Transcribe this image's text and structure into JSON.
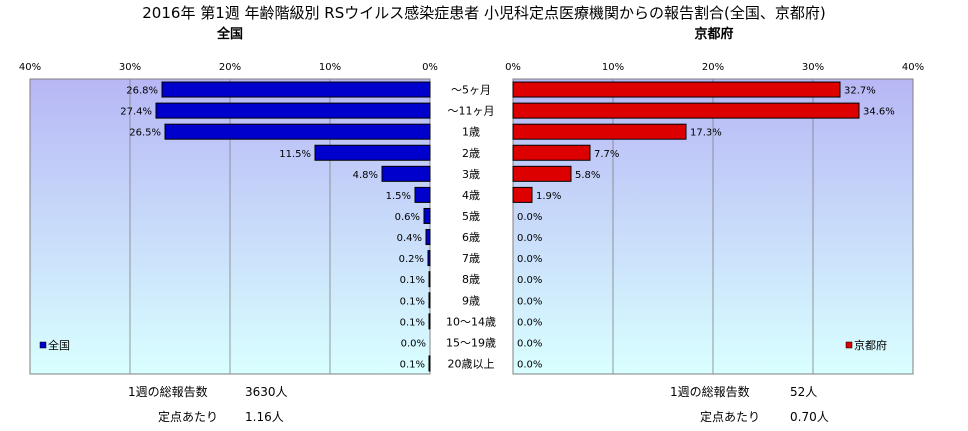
{
  "title": "2016年 第1週 年齢階級別 RSウイルス感染症患者 小児科定点医療機関からの報告割合(全国、京都府)",
  "colors": {
    "national": "#0000cc",
    "kyoto": "#dd0000",
    "plot_bg_top": "#b7b7f5",
    "plot_bg_bottom": "#d9ffff"
  },
  "chart_data": {
    "type": "bar",
    "orientation": "horizontal",
    "categories": [
      "～5ヶ月",
      "～11ヶ月",
      "1歳",
      "2歳",
      "3歳",
      "4歳",
      "5歳",
      "6歳",
      "7歳",
      "8歳",
      "9歳",
      "10～14歳",
      "15～19歳",
      "20歳以上"
    ],
    "xlim": [
      0,
      40
    ],
    "x_ticks": [
      "0%",
      "10%",
      "20%",
      "30%",
      "40%"
    ],
    "grid": true,
    "panels": [
      {
        "title": "全国",
        "legend": "全国",
        "legend_position": "bottom-left",
        "direction": "right-to-left",
        "values": [
          26.8,
          27.4,
          26.5,
          11.5,
          4.8,
          1.5,
          0.6,
          0.4,
          0.2,
          0.1,
          0.1,
          0.1,
          0.0,
          0.1
        ],
        "labels": [
          "26.8%",
          "27.4%",
          "26.5%",
          "11.5%",
          "4.8%",
          "1.5%",
          "0.6%",
          "0.4%",
          "0.2%",
          "0.1%",
          "0.1%",
          "0.1%",
          "0.0%",
          "0.1%"
        ],
        "footer": [
          {
            "label": "1週の総報告数",
            "value": "3630人"
          },
          {
            "label": "定点あたり",
            "value": "1.16人"
          }
        ]
      },
      {
        "title": "京都府",
        "legend": "京都府",
        "legend_position": "bottom-right",
        "direction": "left-to-right",
        "values": [
          32.7,
          34.6,
          17.3,
          7.7,
          5.8,
          1.9,
          0.0,
          0.0,
          0.0,
          0.0,
          0.0,
          0.0,
          0.0,
          0.0
        ],
        "labels": [
          "32.7%",
          "34.6%",
          "17.3%",
          "7.7%",
          "5.8%",
          "1.9%",
          "0.0%",
          "0.0%",
          "0.0%",
          "0.0%",
          "0.0%",
          "0.0%",
          "0.0%",
          "0.0%"
        ],
        "footer": [
          {
            "label": "1週の総報告数",
            "value": "52人"
          },
          {
            "label": "定点あたり",
            "value": "0.70人"
          }
        ]
      }
    ]
  }
}
